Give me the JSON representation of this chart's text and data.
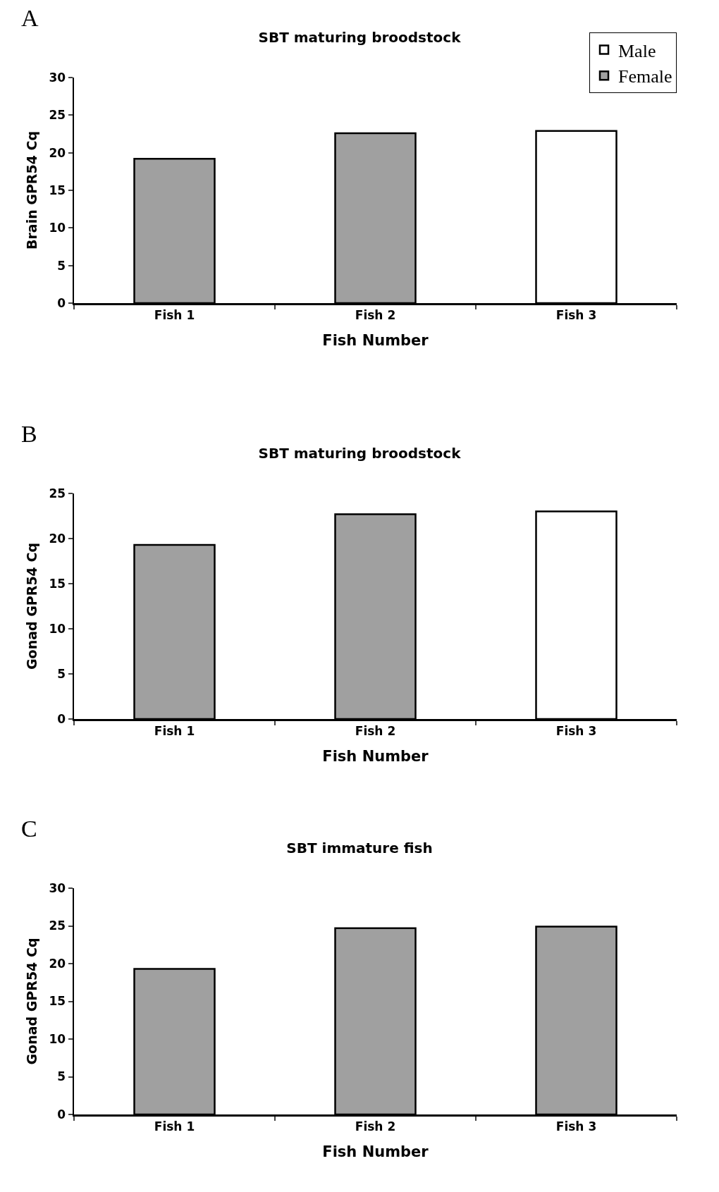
{
  "chart_data": [
    {
      "type": "bar",
      "title": "SBT maturing broodstock",
      "annotations": [
        "A"
      ],
      "xlabel": "Fish Number",
      "ylabel": "Brain GPR54 Cq",
      "categories": [
        "Fish 1",
        "Fish 2",
        "Fish 3"
      ],
      "series": [
        {
          "name": "Male",
          "color": "#ffffff",
          "values": [
            null,
            null,
            22.9
          ]
        },
        {
          "name": "Female",
          "color": "#a0a0a0",
          "values": [
            19.2,
            22.6,
            null
          ]
        }
      ],
      "ylim": [
        0,
        30
      ],
      "yticks": [
        0,
        5,
        10,
        15,
        20,
        25,
        30
      ],
      "grid": false,
      "legend": "top right"
    },
    {
      "type": "bar",
      "title": "SBT maturing broodstock",
      "annotations": [
        "B"
      ],
      "xlabel": "Fish Number",
      "ylabel": "Gonad GPR54 Cq",
      "categories": [
        "Fish 1",
        "Fish 2",
        "Fish 3"
      ],
      "series": [
        {
          "color": "#ffffff",
          "values": [
            null,
            null,
            23.0
          ]
        },
        {
          "color": "#a0a0a0",
          "values": [
            19.3,
            22.7,
            null
          ]
        }
      ],
      "ylim": [
        0,
        25
      ],
      "yticks": [
        0,
        5,
        10,
        15,
        20,
        25
      ],
      "grid": false,
      "legend": false
    },
    {
      "type": "bar",
      "title": "SBT immature fish",
      "annotations": [
        "C"
      ],
      "xlabel": "Fish Number",
      "ylabel": "Gonad GPR54 Cq",
      "categories": [
        "Fish 1",
        "Fish 2",
        "Fish 3"
      ],
      "series": [
        {
          "color": "#a0a0a0",
          "values": [
            19.3,
            24.7,
            24.9
          ]
        }
      ],
      "ylim": [
        0,
        30
      ],
      "yticks": [
        0,
        5,
        10,
        15,
        20,
        25,
        30
      ],
      "grid": false,
      "legend": false
    }
  ]
}
